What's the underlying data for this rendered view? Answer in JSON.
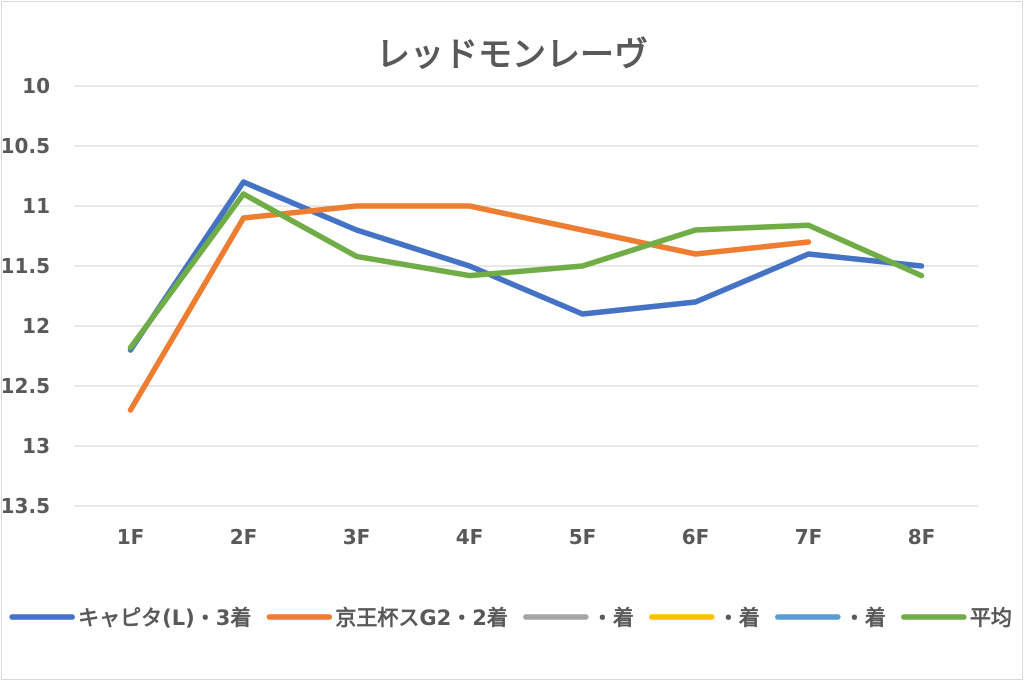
{
  "chart_data": {
    "type": "line",
    "title": "レッドモンレーヴ",
    "categories": [
      "1F",
      "2F",
      "3F",
      "4F",
      "5F",
      "6F",
      "7F",
      "8F"
    ],
    "ylim": [
      10,
      13.5
    ],
    "y_inverted": true,
    "y_ticks": [
      "10",
      "10.5",
      "11",
      "11.5",
      "12",
      "12.5",
      "13",
      "13.5"
    ],
    "grid": true,
    "legend_position": "bottom",
    "series": [
      {
        "name": "キャピタ(L)・3着",
        "color": "#4472c4",
        "values": [
          12.2,
          10.8,
          11.2,
          11.5,
          11.9,
          11.8,
          11.4,
          11.5
        ]
      },
      {
        "name": "京王杯スG2・2着",
        "color": "#ed7d31",
        "values": [
          12.7,
          11.1,
          11.0,
          11.0,
          11.2,
          11.4,
          11.3,
          null
        ]
      },
      {
        "name": "・着",
        "color": "#a5a5a5",
        "values": [
          null,
          null,
          null,
          null,
          null,
          null,
          null,
          null
        ]
      },
      {
        "name": "・着",
        "color": "#ffc000",
        "values": [
          null,
          null,
          null,
          null,
          null,
          null,
          null,
          null
        ]
      },
      {
        "name": "・着",
        "color": "#5b9bd5",
        "values": [
          null,
          null,
          null,
          null,
          null,
          null,
          null,
          null
        ]
      },
      {
        "name": "平均",
        "color": "#70ad47",
        "values": [
          12.18,
          10.9,
          11.42,
          11.58,
          11.5,
          11.2,
          11.16,
          11.58
        ]
      }
    ]
  }
}
